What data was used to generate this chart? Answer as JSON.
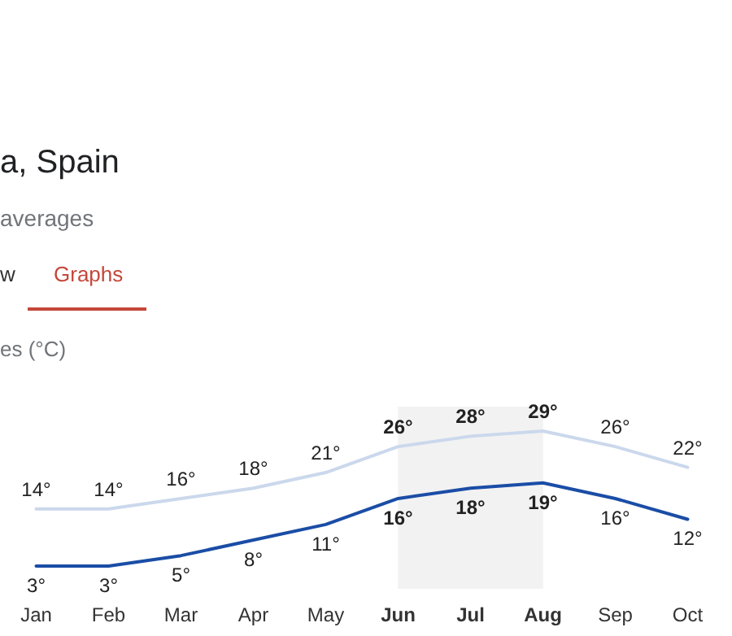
{
  "chart_data": {
    "type": "line",
    "title": "a, Spain",
    "subtitle": "averages",
    "ylabel": "es (°C)",
    "annotations": [
      "w",
      "Graphs"
    ],
    "categories": [
      "Jan",
      "Feb",
      "Mar",
      "Apr",
      "May",
      "Jun",
      "Jul",
      "Aug",
      "Sep",
      "Oct"
    ],
    "series": [
      {
        "color": "#cbd8ec",
        "values": [
          14,
          14,
          16,
          18,
          21,
          26,
          28,
          29,
          26,
          22
        ],
        "value_labels": [
          "14°",
          "14°",
          "16°",
          "18°",
          "21°",
          "26°",
          "28°",
          "29°",
          "26°",
          "22°"
        ]
      },
      {
        "color": "#1a4da6",
        "values": [
          3,
          3,
          5,
          8,
          11,
          16,
          18,
          19,
          16,
          12
        ],
        "value_labels": [
          "3°",
          "3°",
          "5°",
          "8°",
          "11°",
          "16°",
          "18°",
          "19°",
          "16°",
          "12°"
        ]
      }
    ],
    "bands": [
      {
        "axis": "x",
        "from": "Jun",
        "to": "Aug",
        "color": "#f2f2f2"
      }
    ],
    "marker": "none",
    "line_style": "solid"
  }
}
